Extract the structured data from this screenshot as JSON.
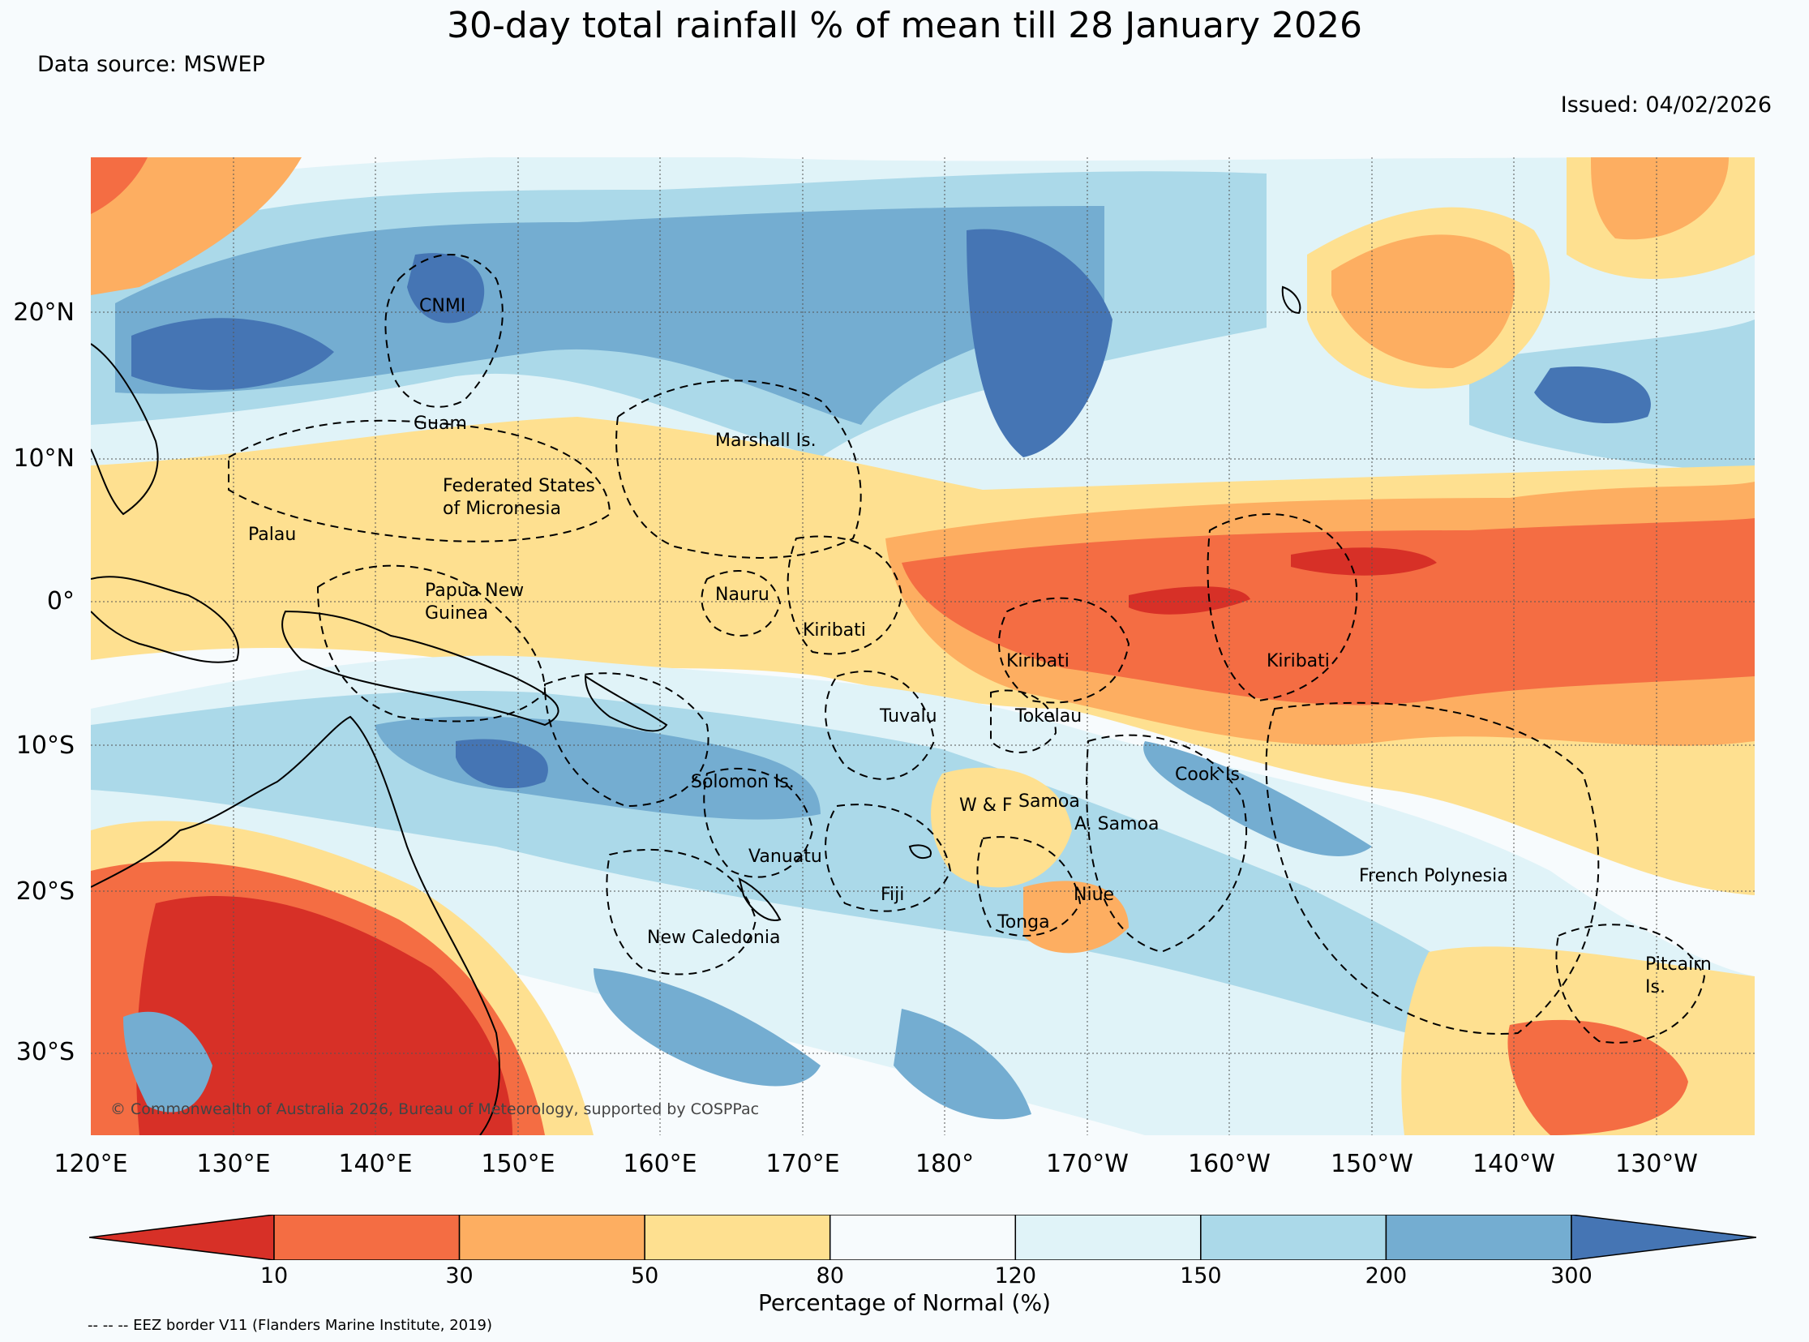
{
  "title": "30-day total rainfall % of mean till 28 January 2026",
  "data_source": "Data source: MSWEP",
  "issued": "Issued: 04/02/2026",
  "copyright": "© Commonwealth of Australia 2026, Bureau of Meteorology, supported by COSPPac",
  "lat_labels": [
    "20°N",
    "10°N",
    "0°",
    "10°S",
    "20°S",
    "30°S"
  ],
  "lon_labels": [
    "120°E",
    "130°E",
    "140°E",
    "150°E",
    "160°E",
    "170°E",
    "180°",
    "170°W",
    "160°W",
    "150°W",
    "140°W",
    "130°W"
  ],
  "regions": [
    {
      "name": "CNMI",
      "lines": [
        "CNMI"
      ]
    },
    {
      "name": "Guam",
      "lines": [
        "Guam"
      ]
    },
    {
      "name": "Marshall Is.",
      "lines": [
        "Marshall Is."
      ]
    },
    {
      "name": "Federated States of Micronesia",
      "lines": [
        "Federated States",
        "of Micronesia"
      ]
    },
    {
      "name": "Palau",
      "lines": [
        "Palau"
      ]
    },
    {
      "name": "Papua New Guinea",
      "lines": [
        "Papua New",
        "Guinea"
      ]
    },
    {
      "name": "Nauru",
      "lines": [
        "Nauru"
      ]
    },
    {
      "name": "Kiribati",
      "lines": [
        "Kiribati"
      ]
    },
    {
      "name": "Kiribati",
      "lines": [
        "Kiribati"
      ]
    },
    {
      "name": "Kiribati",
      "lines": [
        "Kiribati"
      ]
    },
    {
      "name": "Tuvalu",
      "lines": [
        "Tuvalu"
      ]
    },
    {
      "name": "Tokelau",
      "lines": [
        "Tokelau"
      ]
    },
    {
      "name": "Cook Is.",
      "lines": [
        "Cook Is."
      ]
    },
    {
      "name": "Solomon Is.",
      "lines": [
        "Solomon Is."
      ]
    },
    {
      "name": "Samoa",
      "lines": [
        "Samoa"
      ]
    },
    {
      "name": "W & F",
      "lines": [
        "W & F"
      ]
    },
    {
      "name": "A. Samoa",
      "lines": [
        "A. Samoa"
      ]
    },
    {
      "name": "Vanuatu",
      "lines": [
        "Vanuatu"
      ]
    },
    {
      "name": "French Polynesia",
      "lines": [
        "French Polynesia"
      ]
    },
    {
      "name": "Fiji",
      "lines": [
        "Fiji"
      ]
    },
    {
      "name": "Niue",
      "lines": [
        "Niue"
      ]
    },
    {
      "name": "Tonga",
      "lines": [
        "Tonga"
      ]
    },
    {
      "name": "New Caledonia",
      "lines": [
        "New Caledonia"
      ]
    },
    {
      "name": "Pitcairn Is.",
      "lines": [
        "Pitcairn",
        "Is."
      ]
    }
  ],
  "colorbar": {
    "title": "Percentage of Normal (%)",
    "ticks": [
      "10",
      "30",
      "50",
      "80",
      "120",
      "150",
      "200",
      "300"
    ],
    "colors": [
      "#d73027",
      "#f46d43",
      "#fdae61",
      "#fee090",
      "#f7fbfd",
      "#e0f3f8",
      "#abd9e9",
      "#74add1",
      "#4575b4"
    ]
  },
  "eez_note": "-- -- -- EEZ border V11 (Flanders Marine Institute, 2019)"
}
